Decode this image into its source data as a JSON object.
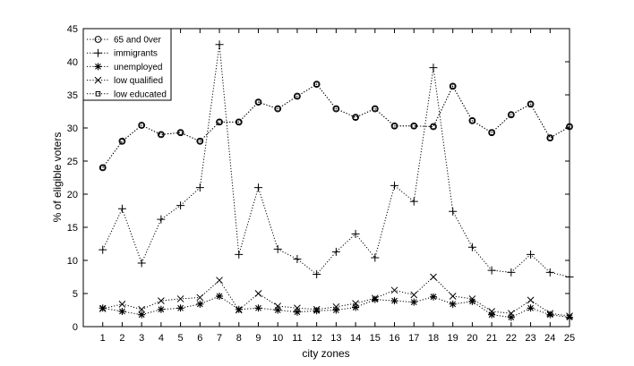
{
  "chart_data": {
    "type": "line",
    "xlabel": "city zones",
    "ylabel": "% of eligible voters",
    "x": [
      1,
      2,
      3,
      4,
      5,
      6,
      7,
      8,
      9,
      10,
      11,
      12,
      13,
      14,
      15,
      16,
      17,
      18,
      19,
      20,
      21,
      22,
      23,
      24,
      25
    ],
    "xlim": [
      0,
      25
    ],
    "ylim": [
      0,
      45
    ],
    "yticks": [
      0,
      5,
      10,
      15,
      20,
      25,
      30,
      35,
      40,
      45
    ],
    "grid": false,
    "legend_position": "top-left",
    "line_style": "dotted",
    "line_color": "#000000",
    "series": [
      {
        "name": "65 and 0ver",
        "marker": "circle",
        "values": [
          24.0,
          28.0,
          30.4,
          29.0,
          29.3,
          28.0,
          30.9,
          30.9,
          33.9,
          32.9,
          34.8,
          36.6,
          32.9,
          31.6,
          32.9,
          30.3,
          30.3,
          30.2,
          36.3,
          31.1,
          29.3,
          32.0,
          33.6,
          28.5,
          30.2
        ]
      },
      {
        "name": "immigrants",
        "marker": "plus",
        "values": [
          11.6,
          17.8,
          9.6,
          16.2,
          18.3,
          21.0,
          42.6,
          10.9,
          21.0,
          11.7,
          10.2,
          7.9,
          11.3,
          14.0,
          10.4,
          21.3,
          18.9,
          39.1,
          17.4,
          12.0,
          8.5,
          8.2,
          10.9,
          8.2,
          7.5
        ]
      },
      {
        "name": "unemployed",
        "marker": "asterisk",
        "values": [
          2.8,
          2.3,
          1.8,
          2.6,
          2.8,
          3.4,
          4.6,
          2.6,
          2.8,
          2.5,
          2.2,
          2.4,
          2.5,
          2.9,
          4.1,
          3.9,
          3.7,
          4.5,
          3.4,
          3.8,
          1.8,
          1.4,
          2.8,
          1.8,
          1.4
        ]
      },
      {
        "name": "low qualified",
        "marker": "cross",
        "values": [
          2.7,
          3.4,
          2.6,
          3.9,
          4.2,
          4.4,
          7.0,
          2.5,
          5.0,
          3.1,
          2.8,
          2.6,
          3.0,
          3.5,
          4.3,
          5.5,
          4.8,
          7.5,
          4.6,
          4.2,
          2.3,
          2.0,
          4.0,
          2.0,
          1.6
        ]
      },
      {
        "name": "low educated",
        "marker": "square",
        "values": [
          24.0,
          28.0,
          30.4,
          29.0,
          29.3,
          28.0,
          30.9,
          30.9,
          33.9,
          32.9,
          34.8,
          36.6,
          32.9,
          31.6,
          32.9,
          30.3,
          30.3,
          30.2,
          36.3,
          31.1,
          29.3,
          32.0,
          33.6,
          28.5,
          30.2
        ]
      }
    ]
  }
}
